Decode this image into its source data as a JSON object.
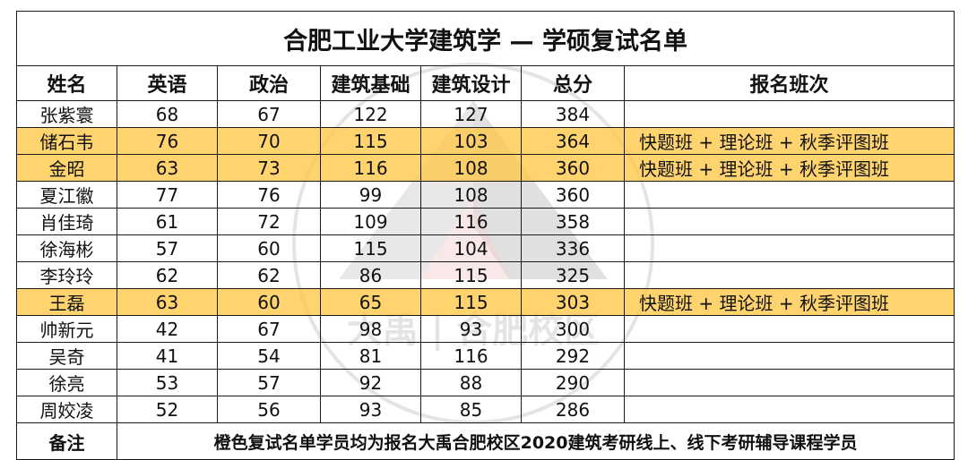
{
  "title": "合肥工业大学建筑学 — 学硕复试名单",
  "columns": [
    "姓名",
    "英语",
    "政治",
    "建筑基础",
    "建筑设计",
    "总分",
    "报名班次"
  ],
  "highlight_color": "#FFC846",
  "rows": [
    {
      "name": "张紫寰",
      "english": "68",
      "politics": "67",
      "arch_basic": "122",
      "arch_design": "127",
      "total": "384",
      "class": "",
      "highlight": false
    },
    {
      "name": "储石韦",
      "english": "76",
      "politics": "70",
      "arch_basic": "115",
      "arch_design": "103",
      "total": "364",
      "class": "快题班 + 理论班 + 秋季评图班",
      "highlight": true
    },
    {
      "name": "金昭",
      "english": "63",
      "politics": "73",
      "arch_basic": "116",
      "arch_design": "108",
      "total": "360",
      "class": "快题班 + 理论班 + 秋季评图班",
      "highlight": true
    },
    {
      "name": "夏江徽",
      "english": "77",
      "politics": "76",
      "arch_basic": "99",
      "arch_design": "108",
      "total": "360",
      "class": "",
      "highlight": false
    },
    {
      "name": "肖佳琦",
      "english": "61",
      "politics": "72",
      "arch_basic": "109",
      "arch_design": "116",
      "total": "358",
      "class": "",
      "highlight": false
    },
    {
      "name": "徐海彬",
      "english": "57",
      "politics": "60",
      "arch_basic": "115",
      "arch_design": "104",
      "total": "336",
      "class": "",
      "highlight": false
    },
    {
      "name": "李玲玲",
      "english": "62",
      "politics": "62",
      "arch_basic": "86",
      "arch_design": "115",
      "total": "325",
      "class": "",
      "highlight": false
    },
    {
      "name": "王磊",
      "english": "63",
      "politics": "60",
      "arch_basic": "65",
      "arch_design": "115",
      "total": "303",
      "class": "快题班 + 理论班 + 秋季评图班",
      "highlight": true
    },
    {
      "name": "帅新元",
      "english": "42",
      "politics": "67",
      "arch_basic": "98",
      "arch_design": "93",
      "total": "300",
      "class": "",
      "highlight": false
    },
    {
      "name": "吴奇",
      "english": "41",
      "politics": "54",
      "arch_basic": "81",
      "arch_design": "116",
      "total": "292",
      "class": "",
      "highlight": false
    },
    {
      "name": "徐亮",
      "english": "53",
      "politics": "57",
      "arch_basic": "92",
      "arch_design": "88",
      "total": "290",
      "class": "",
      "highlight": false
    },
    {
      "name": "周姣凌",
      "english": "52",
      "politics": "56",
      "arch_basic": "93",
      "arch_design": "85",
      "total": "286",
      "class": "",
      "highlight": false
    }
  ],
  "note": {
    "label": "备注",
    "text": "橙色复试名单学员均为报名大禹合肥校区2020建筑考研线上、线下考研辅导课程学员"
  },
  "watermark": {
    "text": "大禹 | 合肥校区",
    "icon": "dayu-logo-watermark"
  }
}
